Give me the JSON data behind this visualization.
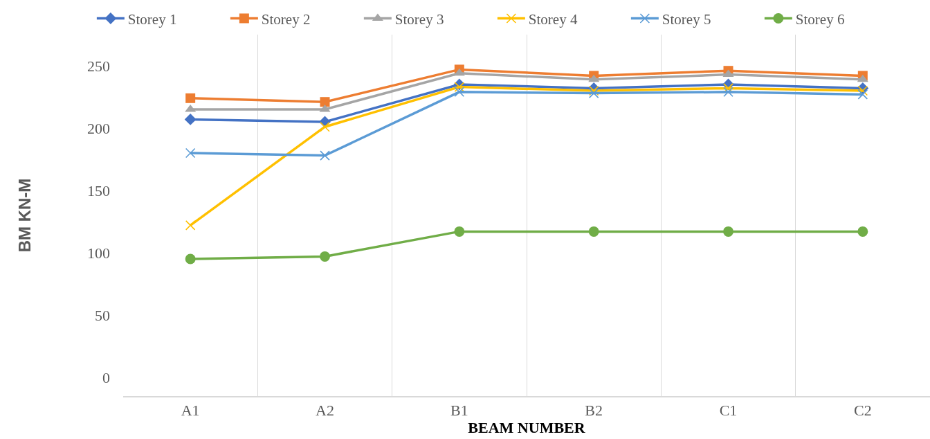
{
  "chart_data": {
    "type": "line",
    "xlabel": "BEAM NUMBER",
    "ylabel": "BM KN-M",
    "categories": [
      "A1",
      "A2",
      "B1",
      "B2",
      "C1",
      "C2"
    ],
    "series": [
      {
        "name": "Storey 1",
        "color": "#4472c4",
        "marker": "diamond",
        "values": [
          207,
          205,
          235,
          232,
          235,
          232
        ]
      },
      {
        "name": "Storey 2",
        "color": "#ed7d31",
        "marker": "square",
        "values": [
          224,
          221,
          247,
          242,
          246,
          242
        ]
      },
      {
        "name": "Storey 3",
        "color": "#a5a5a5",
        "marker": "triangle",
        "values": [
          215,
          215,
          244,
          239,
          243,
          239
        ]
      },
      {
        "name": "Storey 4",
        "color": "#ffc000",
        "marker": "cross",
        "values": [
          122,
          201,
          233,
          230,
          232,
          230
        ]
      },
      {
        "name": "Storey 5",
        "color": "#5b9bd5",
        "marker": "cross",
        "values": [
          180,
          178,
          229,
          228,
          229,
          227
        ]
      },
      {
        "name": "Storey 6",
        "color": "#70ad47",
        "marker": "circle",
        "values": [
          95,
          97,
          117,
          117,
          117,
          117
        ]
      }
    ],
    "ylim": [
      -15,
      275
    ],
    "yticks": [
      0,
      50,
      100,
      150,
      200,
      250
    ],
    "grid": "x",
    "legend": "top",
    "line_style": "solid"
  }
}
